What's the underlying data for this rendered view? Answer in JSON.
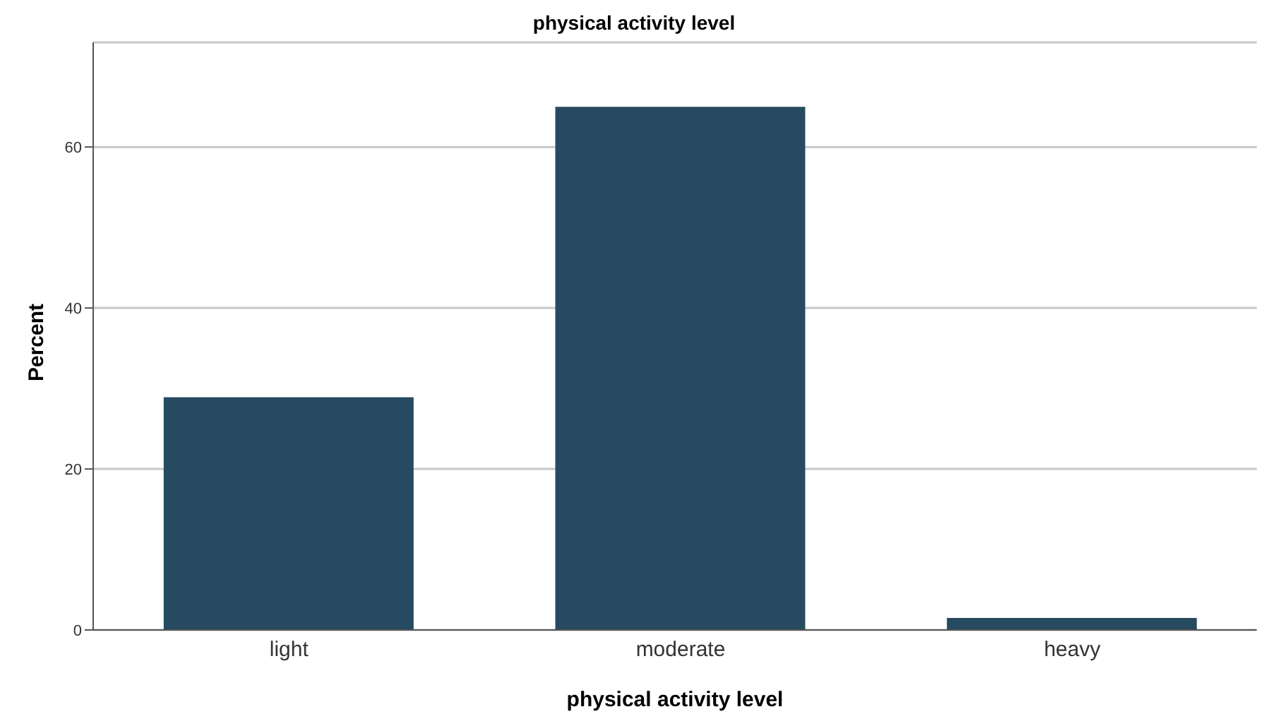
{
  "chart_data": {
    "type": "bar",
    "title": "physical activity level",
    "xlabel": "physical activity level",
    "ylabel": "Percent",
    "categories": [
      "light",
      "moderate",
      "heavy"
    ],
    "values": [
      28.9,
      65.0,
      1.5
    ],
    "color": "#264a60",
    "ylim": [
      0,
      73
    ],
    "yticks": [
      0,
      20,
      40,
      60
    ],
    "grid": "y"
  }
}
